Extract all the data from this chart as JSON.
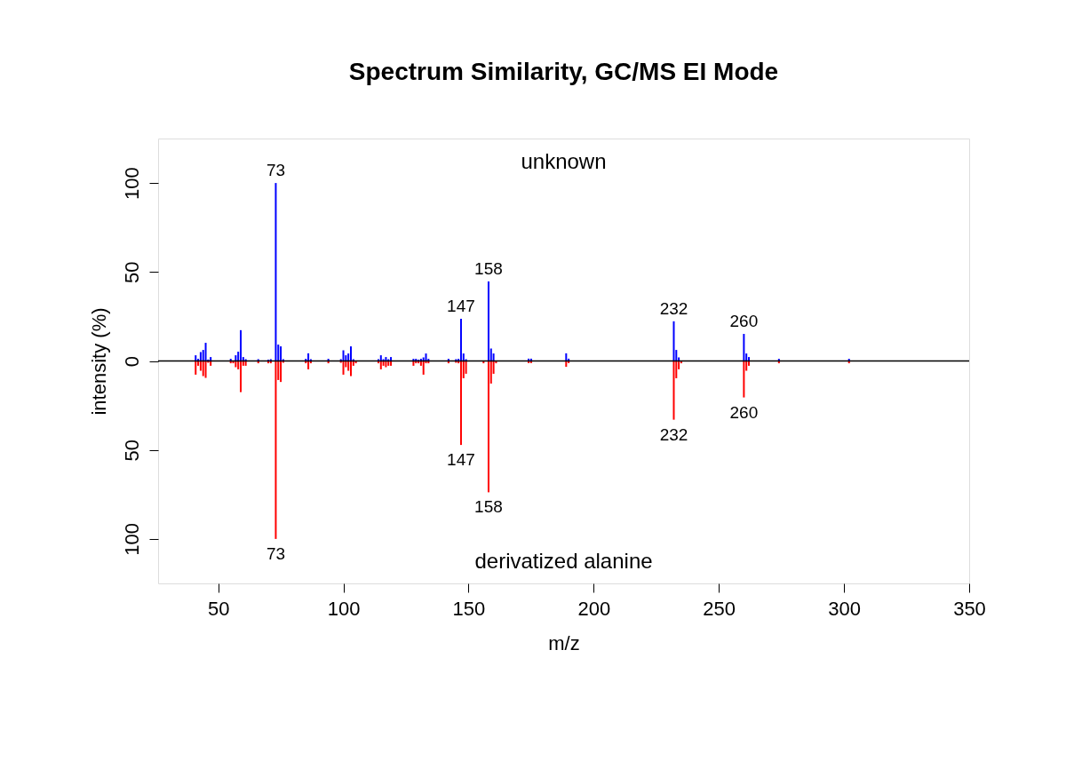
{
  "chart_data": {
    "type": "bar",
    "title": "Spectrum Similarity, GC/MS EI Mode",
    "xlabel": "m/z",
    "ylabel": "intensity (%)",
    "xlim": [
      26,
      350
    ],
    "xticks": [
      50,
      100,
      150,
      200,
      250,
      300,
      350
    ],
    "ylim": [
      -125,
      125
    ],
    "yticks": [
      {
        "value": -100,
        "label": "100"
      },
      {
        "value": -50,
        "label": "50"
      },
      0,
      50,
      100
    ],
    "grid": false,
    "series": [
      {
        "color": "#0000ff",
        "x": [
          41,
          42,
          43,
          44,
          45,
          46,
          47,
          55,
          56,
          57,
          58,
          59,
          60,
          61,
          66,
          70,
          71,
          73,
          74,
          75,
          76,
          85,
          86,
          87,
          94,
          99,
          100,
          101,
          102,
          103,
          104,
          114,
          115,
          116,
          117,
          118,
          119,
          128,
          129,
          130,
          131,
          132,
          133,
          134,
          142,
          145,
          146,
          147,
          148,
          149,
          158,
          159,
          160,
          174,
          175,
          189,
          190,
          232,
          233,
          234,
          260,
          261,
          262,
          274,
          302
        ],
        "values": [
          3.2,
          1.2,
          5,
          6.2,
          10.2,
          0.8,
          2.2,
          1.2,
          null,
          3.2,
          5.2,
          17.3,
          2.2,
          1,
          1,
          0.7,
          1,
          100,
          9.2,
          8.2,
          1,
          1.2,
          4.3,
          1,
          1.2,
          1,
          6,
          3.2,
          4.2,
          8.2,
          1,
          1,
          3.2,
          1,
          2.2,
          1,
          2.2,
          1.2,
          1.2,
          0.7,
          1.2,
          2,
          4.2,
          1.2,
          1.2,
          1,
          1.2,
          23.7,
          4.2,
          1,
          44.7,
          7,
          4.2,
          1.3,
          1.3,
          4.3,
          1.3,
          22.3,
          6.2,
          2,
          15.2,
          4.2,
          2.2,
          1.2,
          1.2
        ]
      },
      {
        "color": "#ff0000",
        "x": [
          41,
          42,
          43,
          44,
          45,
          46,
          47,
          55,
          56,
          57,
          58,
          59,
          60,
          61,
          66,
          70,
          71,
          73,
          74,
          75,
          76,
          85,
          86,
          87,
          94,
          99,
          100,
          101,
          102,
          103,
          104,
          105,
          114,
          115,
          116,
          117,
          118,
          119,
          128,
          129,
          130,
          131,
          132,
          133,
          134,
          142,
          145,
          146,
          147,
          148,
          149,
          156,
          158,
          159,
          160,
          161,
          174,
          175,
          189,
          190,
          232,
          233,
          234,
          235,
          260,
          261,
          262,
          274,
          302
        ],
        "values": [
          -7.7,
          -2.7,
          -5.5,
          -8.5,
          -9.5,
          -1,
          -2.7,
          -1.3,
          -1.3,
          -3.5,
          -4.7,
          -17.5,
          -2.7,
          -2.7,
          -1.3,
          -1.3,
          -1.3,
          -100,
          -10.7,
          -11.8,
          -1,
          -1.3,
          -4.7,
          -1.3,
          -1.3,
          -1,
          -7.7,
          -3.5,
          -5.5,
          -8.5,
          -2.7,
          -1.3,
          -1.3,
          -4.7,
          -2.7,
          -3.5,
          -2.7,
          -2.7,
          -2.7,
          -1.3,
          -1.3,
          -2.7,
          -7.7,
          -1.3,
          -1.3,
          -1.3,
          -1,
          -1.3,
          -47.2,
          -9.7,
          -7.2,
          -1.3,
          -73.8,
          -12.7,
          -7.2,
          -1.3,
          -1.2,
          -1.2,
          -3.3,
          -1.2,
          -33,
          -9.7,
          -4.7,
          -1.3,
          -20.5,
          -5.5,
          -2.7,
          -1.3,
          -1.3
        ]
      }
    ],
    "ref_lines": [
      {
        "axis": "y",
        "value": 0,
        "color": "#000000"
      }
    ],
    "annotations": [
      "unknown",
      "derivatized alanine",
      {
        "text": "73",
        "x": 73,
        "y": 100
      },
      {
        "text": "147",
        "x": 147,
        "y": 23.7
      },
      {
        "text": "158",
        "x": 158,
        "y": 44.7
      },
      {
        "text": "232",
        "x": 232,
        "y": 22.3
      },
      {
        "text": "260",
        "x": 260,
        "y": 15.2
      },
      {
        "text": "73",
        "x": 73,
        "y": -100
      },
      {
        "text": "147",
        "x": 147,
        "y": -47.2
      },
      {
        "text": "158",
        "x": 158,
        "y": -73.8
      },
      {
        "text": "232",
        "x": 232,
        "y": -33
      },
      {
        "text": "260",
        "x": 260,
        "y": -20.5
      }
    ]
  }
}
